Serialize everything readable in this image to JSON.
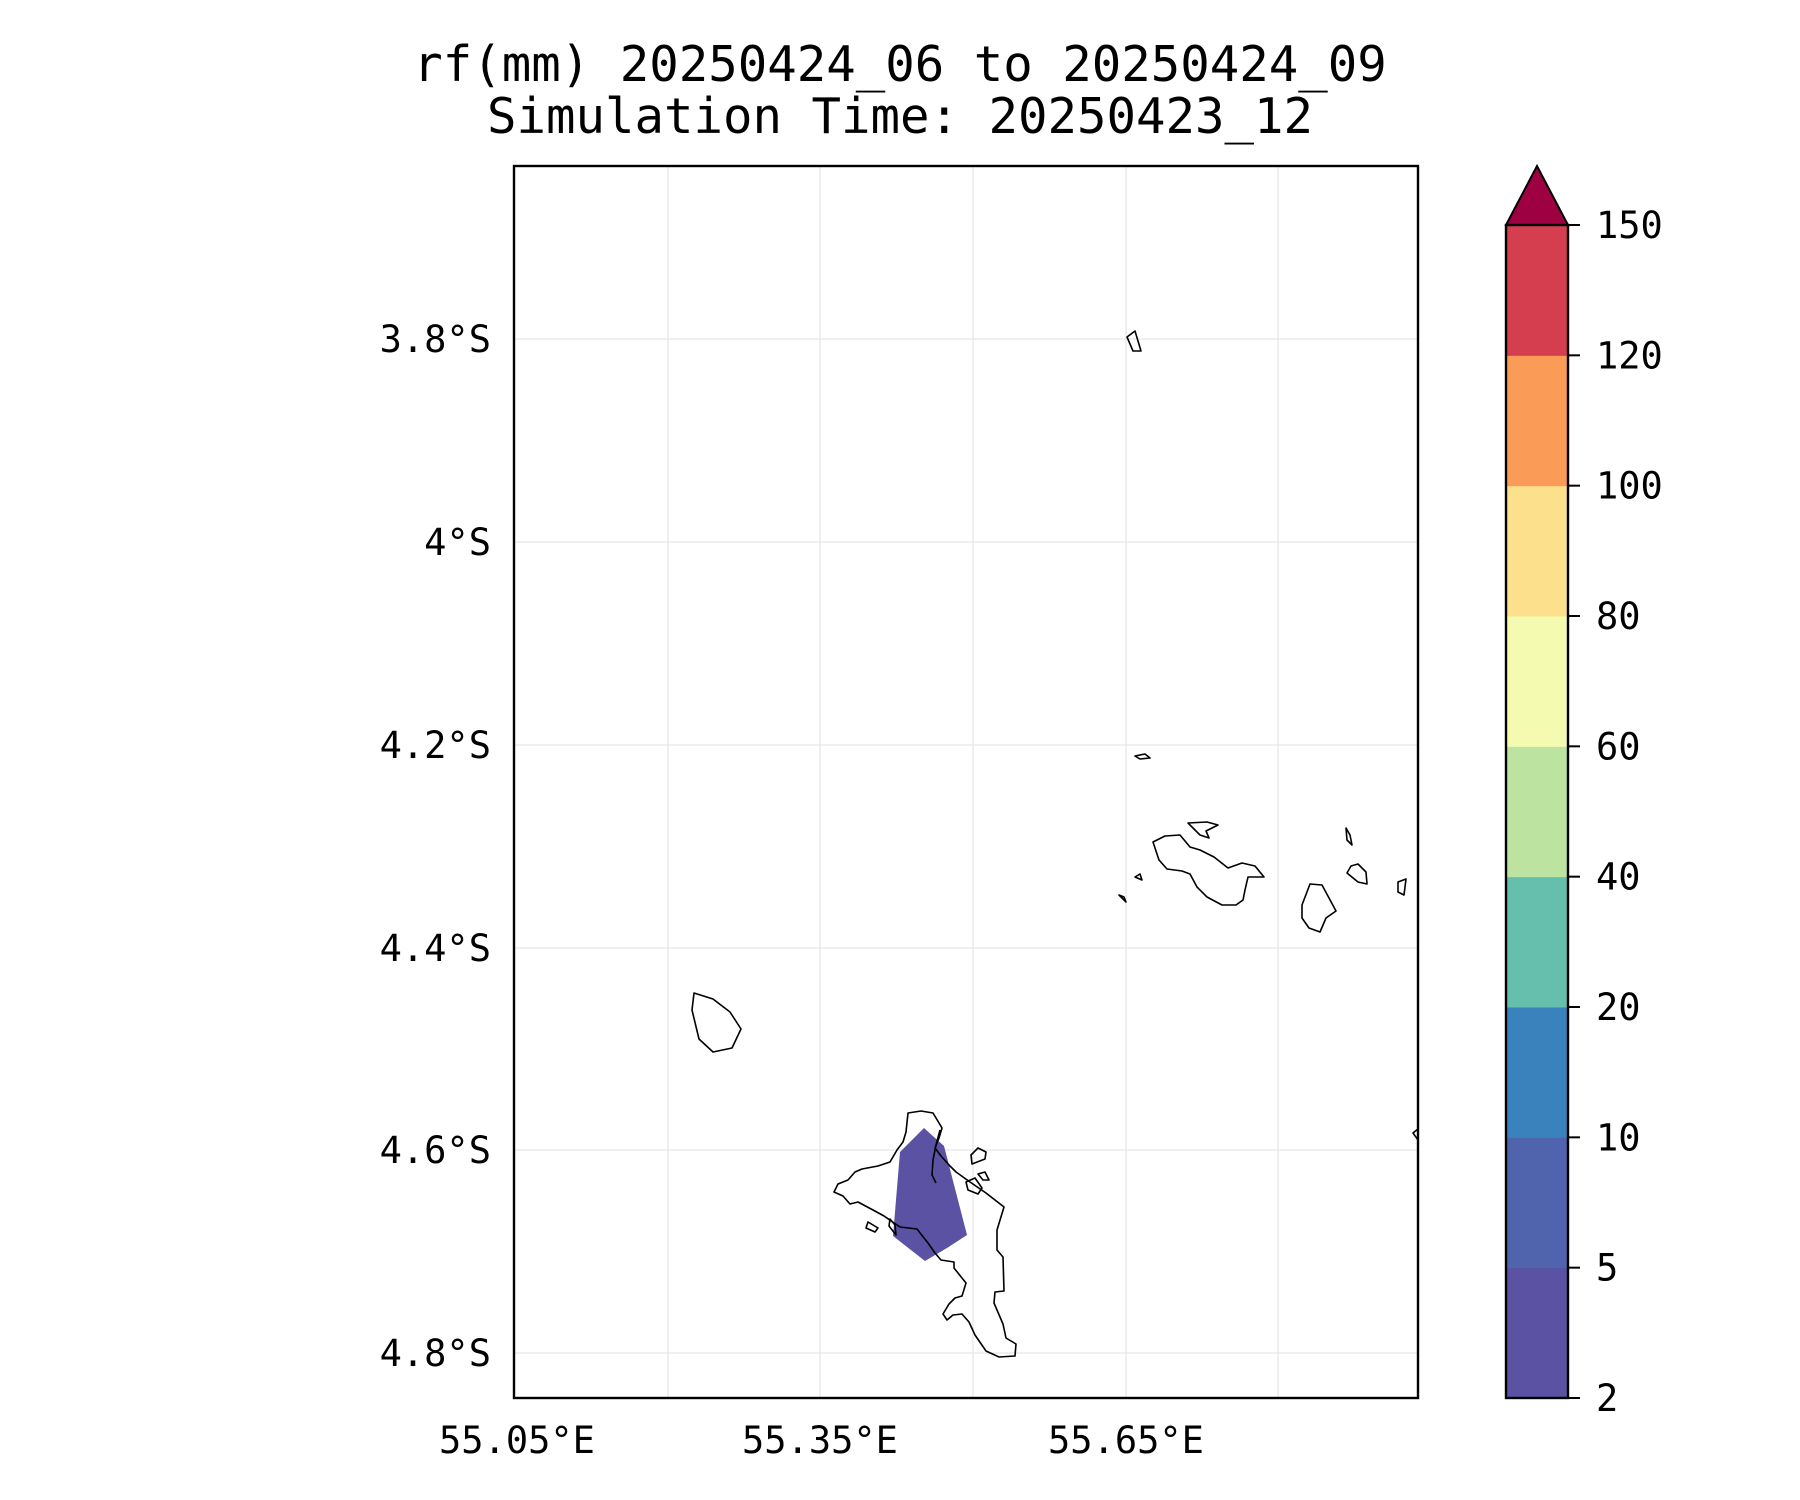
{
  "title": {
    "line1": "rf(mm) 20250424_06 to 20250424_09",
    "line2": "Simulation Time: 20250423_12"
  },
  "map": {
    "lat_ticks": [
      "3.8°S",
      "4°S",
      "4.2°S",
      "4.4°S",
      "4.6°S",
      "4.8°S"
    ],
    "lon_ticks": [
      "55.05°E",
      "55.35°E",
      "55.65°E"
    ],
    "gridlines": true,
    "coastline_color": "#000000",
    "rain_field": {
      "range_mm": [
        2,
        5
      ],
      "color": "#5b52a3"
    }
  },
  "colorbar": {
    "levels": [
      "2",
      "5",
      "10",
      "20",
      "40",
      "60",
      "80",
      "100",
      "120",
      "150"
    ],
    "colors": [
      "#5b52a3",
      "#4f64ac",
      "#3a82bc",
      "#65bfac",
      "#bde3a1",
      "#f4fbb0",
      "#fde08b",
      "#fa9c57",
      "#d53e4f"
    ],
    "extend_color": "#9e0142",
    "extend": "max"
  }
}
